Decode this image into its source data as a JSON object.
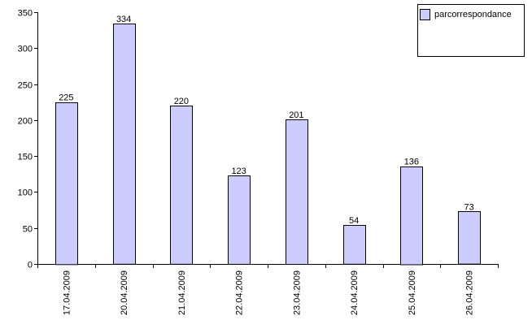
{
  "chart_data": {
    "type": "bar",
    "categories": [
      "17.04.2009",
      "20.04.2009",
      "21.04.2009",
      "22.04.2009",
      "23.04.2009",
      "24.04.2009",
      "25.04.2009",
      "26.04.2009"
    ],
    "series": [
      {
        "name": "parcorrespondance",
        "color": "#ccccff",
        "values": [
          225,
          334,
          220,
          123,
          201,
          54,
          136,
          73
        ]
      }
    ],
    "ylim": [
      0,
      350
    ],
    "yticks": [
      0,
      50,
      100,
      150,
      200,
      250,
      300,
      350
    ],
    "legend": "top-right",
    "data_labels": true
  }
}
